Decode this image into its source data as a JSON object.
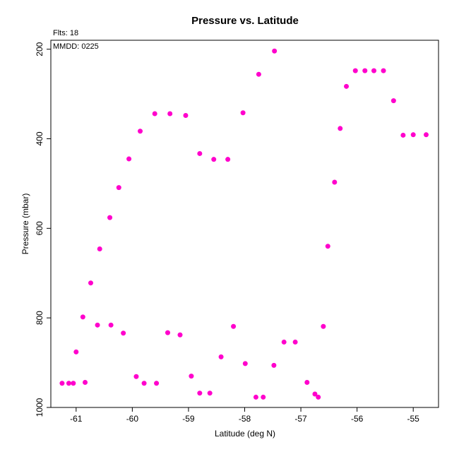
{
  "chart_data": {
    "type": "scatter",
    "title": "Pressure vs. Latitude",
    "annotations": {
      "flights": "Flts: 18",
      "date": "MMDD: 0225"
    },
    "xlabel": "Latitude (deg N)",
    "ylabel": "Pressure (mbar)",
    "xlim": [
      -61.45,
      -54.55
    ],
    "ylim": [
      1000,
      180
    ],
    "y_inverted": true,
    "x_ticks": [
      -61,
      -60,
      -59,
      -58,
      -57,
      -56,
      -55
    ],
    "y_ticks": [
      200,
      400,
      600,
      800,
      1000
    ],
    "grid": false,
    "color": "#ff00cc",
    "series": [
      {
        "points": [
          [
            -61.25,
            946
          ],
          [
            -61.13,
            946
          ],
          [
            -61.05,
            946
          ],
          [
            -61.0,
            876
          ],
          [
            -60.88,
            798
          ],
          [
            -60.84,
            944
          ],
          [
            -60.74,
            722
          ],
          [
            -60.62,
            816
          ],
          [
            -60.58,
            646
          ],
          [
            -60.4,
            576
          ],
          [
            -60.38,
            816
          ],
          [
            -60.24,
            509
          ],
          [
            -60.16,
            834
          ],
          [
            -60.06,
            445
          ],
          [
            -59.93,
            931
          ],
          [
            -59.86,
            383
          ],
          [
            -59.79,
            946
          ],
          [
            -59.6,
            344
          ],
          [
            -59.57,
            946
          ],
          [
            -59.37,
            833
          ],
          [
            -59.33,
            344
          ],
          [
            -59.15,
            838
          ],
          [
            -59.05,
            348
          ],
          [
            -58.95,
            930
          ],
          [
            -58.8,
            968
          ],
          [
            -58.8,
            433
          ],
          [
            -58.62,
            968
          ],
          [
            -58.55,
            446
          ],
          [
            -58.42,
            887
          ],
          [
            -58.3,
            446
          ],
          [
            -58.2,
            819
          ],
          [
            -58.03,
            342
          ],
          [
            -57.99,
            902
          ],
          [
            -57.8,
            977
          ],
          [
            -57.75,
            256
          ],
          [
            -57.67,
            977
          ],
          [
            -57.48,
            906
          ],
          [
            -57.47,
            204
          ],
          [
            -57.3,
            854
          ],
          [
            -57.1,
            854
          ],
          [
            -56.89,
            944
          ],
          [
            -56.75,
            970
          ],
          [
            -56.69,
            977
          ],
          [
            -56.6,
            819
          ],
          [
            -56.52,
            640
          ],
          [
            -56.4,
            497
          ],
          [
            -56.3,
            377
          ],
          [
            -56.19,
            283
          ],
          [
            -56.03,
            248
          ],
          [
            -55.86,
            248
          ],
          [
            -55.7,
            248
          ],
          [
            -55.53,
            248
          ],
          [
            -55.35,
            315
          ],
          [
            -55.18,
            392
          ],
          [
            -55.0,
            391
          ],
          [
            -54.77,
            391
          ]
        ]
      }
    ]
  }
}
